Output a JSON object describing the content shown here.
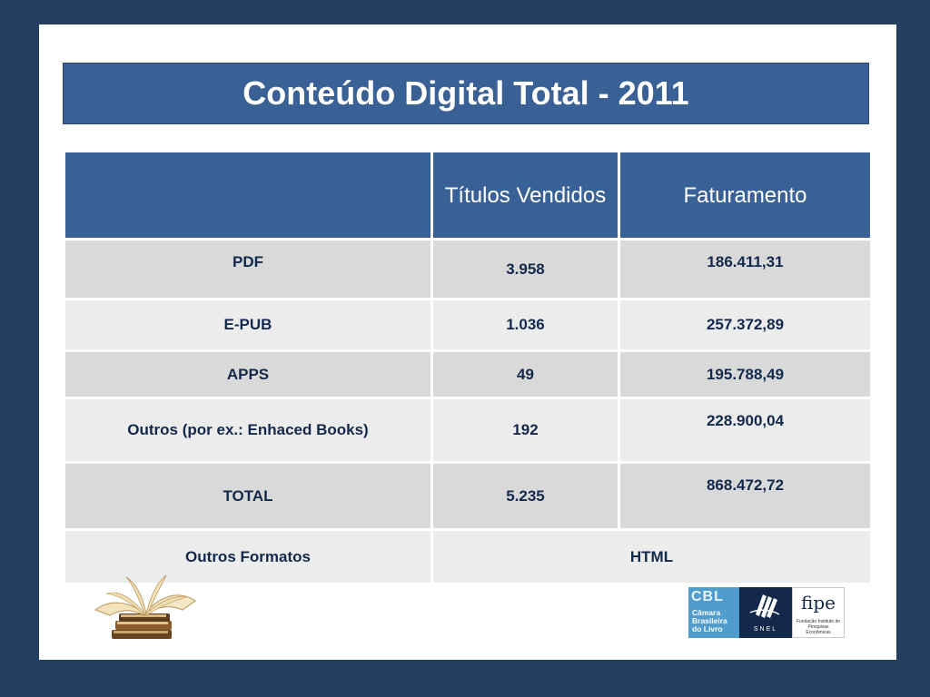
{
  "title": "Conteúdo Digital Total - 2011",
  "table": {
    "headers": [
      "",
      "Títulos Vendidos",
      "Faturamento"
    ],
    "rows": [
      {
        "label": "PDF",
        "titulos": "3.958",
        "faturamento": "186.411,31"
      },
      {
        "label": "E-PUB",
        "titulos": "1.036",
        "faturamento": "257.372,89"
      },
      {
        "label": "APPS",
        "titulos": "49",
        "faturamento": "195.788,49"
      },
      {
        "label": "Outros (por ex.: Enhaced Books)",
        "titulos": "192",
        "faturamento": "228.900,04"
      },
      {
        "label": "TOTAL",
        "titulos": "5.235",
        "faturamento": "868.472,72"
      }
    ],
    "other_formats": {
      "label": "Outros Formatos",
      "value": "HTML"
    }
  },
  "logos": {
    "cbl": {
      "mark": "CBL",
      "text": [
        "Câmara",
        "Brasileira",
        "do Livro"
      ]
    },
    "snel": {
      "text": "SNEL"
    },
    "fipe": {
      "name": "fipe",
      "subtitle": "Fundação Instituto de Pesquisas Econômicas"
    }
  },
  "colors": {
    "background": "#243f60",
    "title_bar": "#3a6196",
    "header": "#3a6196",
    "row_dark": "#d9d9d9",
    "row_light": "#ececec",
    "text": "#13294b"
  },
  "icons": {
    "books": "open-book-on-stack-icon"
  }
}
